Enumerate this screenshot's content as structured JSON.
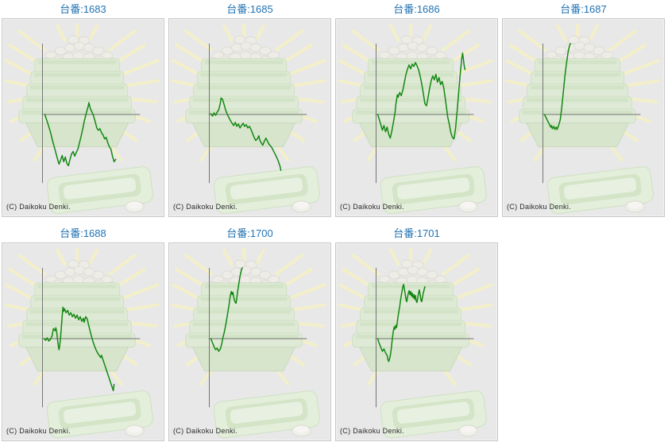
{
  "page": {
    "background": "#ffffff"
  },
  "copyright": "(C) Daikoku Denki.",
  "colors": {
    "title_link_blue": "#2273b3",
    "line_green": "#128712",
    "axis_gray": "#747474",
    "panel_bg": "#e8e8e8",
    "panel_border": "#c6c6c6",
    "copyright_text": "#2b2b2b",
    "watermark_ray_yellow": "#f6f1c2",
    "watermark_tray_green": "#dcebd1",
    "watermark_ball_white": "#efeee7"
  },
  "panels": [
    {
      "machine_no": "1683",
      "title": "台番:1683"
    },
    {
      "machine_no": "1685",
      "title": "台番:1685"
    },
    {
      "machine_no": "1686",
      "title": "台番:1686"
    },
    {
      "machine_no": "1687",
      "title": "台番:1687"
    },
    {
      "machine_no": "1688",
      "title": "台番:1688"
    },
    {
      "machine_no": "1700",
      "title": "台番:1700"
    },
    {
      "machine_no": "1701",
      "title": "台番:1701"
    }
  ],
  "chart_data": [
    {
      "type": "line",
      "title": "台番:1683",
      "machine_no": "1683",
      "xlabel": "",
      "ylabel": "",
      "tick_labels": "none",
      "grid": false,
      "legend": false,
      "units": "pixels from axis origin, y positive above zero line",
      "xlim": [
        0,
        124
      ],
      "ylim": [
        -87,
        90
      ],
      "points": [
        [
          3,
          0
        ],
        [
          5,
          -6
        ],
        [
          7,
          -12
        ],
        [
          10,
          -22
        ],
        [
          13,
          -34
        ],
        [
          16,
          -45
        ],
        [
          19,
          -56
        ],
        [
          21,
          -63
        ],
        [
          23,
          -58
        ],
        [
          25,
          -52
        ],
        [
          27,
          -60
        ],
        [
          29,
          -54
        ],
        [
          31,
          -62
        ],
        [
          33,
          -65
        ],
        [
          35,
          -57
        ],
        [
          37,
          -50
        ],
        [
          39,
          -47
        ],
        [
          41,
          -53
        ],
        [
          43,
          -48
        ],
        [
          45,
          -44
        ],
        [
          47,
          -36
        ],
        [
          49,
          -28
        ],
        [
          51,
          -19
        ],
        [
          53,
          -9
        ],
        [
          55,
          -1
        ],
        [
          56,
          3
        ],
        [
          58,
          10
        ],
        [
          59,
          15
        ],
        [
          61,
          7
        ],
        [
          63,
          3
        ],
        [
          65,
          -2
        ],
        [
          67,
          -9
        ],
        [
          69,
          -17
        ],
        [
          71,
          -20
        ],
        [
          73,
          -18
        ],
        [
          75,
          -23
        ],
        [
          77,
          -26
        ],
        [
          79,
          -31
        ],
        [
          81,
          -29
        ],
        [
          83,
          -36
        ],
        [
          85,
          -41
        ],
        [
          87,
          -44
        ],
        [
          89,
          -53
        ],
        [
          91,
          -60
        ],
        [
          93,
          -57
        ]
      ]
    },
    {
      "type": "line",
      "title": "台番:1685",
      "machine_no": "1685",
      "xlabel": "",
      "ylabel": "",
      "tick_labels": "none",
      "grid": false,
      "legend": false,
      "units": "pixels from axis origin, y positive above zero line",
      "xlim": [
        0,
        124
      ],
      "ylim": [
        -87,
        90
      ],
      "points": [
        [
          2,
          1
        ],
        [
          4,
          -2
        ],
        [
          6,
          2
        ],
        [
          8,
          -1
        ],
        [
          10,
          3
        ],
        [
          12,
          6
        ],
        [
          14,
          14
        ],
        [
          15,
          21
        ],
        [
          17,
          19
        ],
        [
          19,
          12
        ],
        [
          21,
          5
        ],
        [
          23,
          0
        ],
        [
          25,
          -4
        ],
        [
          27,
          -8
        ],
        [
          29,
          -11
        ],
        [
          31,
          -14
        ],
        [
          33,
          -10
        ],
        [
          35,
          -15
        ],
        [
          37,
          -12
        ],
        [
          39,
          -17
        ],
        [
          41,
          -14
        ],
        [
          43,
          -11
        ],
        [
          45,
          -15
        ],
        [
          47,
          -13
        ],
        [
          49,
          -17
        ],
        [
          51,
          -15
        ],
        [
          53,
          -19
        ],
        [
          55,
          -24
        ],
        [
          57,
          -29
        ],
        [
          59,
          -33
        ],
        [
          61,
          -31
        ],
        [
          63,
          -27
        ],
        [
          64,
          -32
        ],
        [
          66,
          -36
        ],
        [
          68,
          -39
        ],
        [
          70,
          -34
        ],
        [
          72,
          -30
        ],
        [
          74,
          -34
        ],
        [
          76,
          -38
        ],
        [
          78,
          -40
        ],
        [
          80,
          -43
        ],
        [
          82,
          -47
        ],
        [
          84,
          -51
        ],
        [
          86,
          -55
        ],
        [
          88,
          -60
        ],
        [
          90,
          -66
        ],
        [
          91,
          -71
        ]
      ]
    },
    {
      "type": "line",
      "title": "台番:1686",
      "machine_no": "1686",
      "xlabel": "",
      "ylabel": "",
      "tick_labels": "none",
      "grid": false,
      "legend": false,
      "units": "pixels from axis origin, y positive above zero line",
      "xlim": [
        0,
        124
      ],
      "ylim": [
        -87,
        90
      ],
      "points": [
        [
          2,
          0
        ],
        [
          4,
          -6
        ],
        [
          6,
          -13
        ],
        [
          8,
          -20
        ],
        [
          10,
          -14
        ],
        [
          12,
          -22
        ],
        [
          14,
          -16
        ],
        [
          16,
          -25
        ],
        [
          18,
          -30
        ],
        [
          20,
          -21
        ],
        [
          22,
          -10
        ],
        [
          24,
          2
        ],
        [
          25,
          12
        ],
        [
          27,
          25
        ],
        [
          28,
          22
        ],
        [
          30,
          28
        ],
        [
          32,
          24
        ],
        [
          34,
          31
        ],
        [
          36,
          41
        ],
        [
          38,
          51
        ],
        [
          40,
          58
        ],
        [
          42,
          63
        ],
        [
          44,
          58
        ],
        [
          46,
          64
        ],
        [
          48,
          61
        ],
        [
          50,
          66
        ],
        [
          52,
          62
        ],
        [
          54,
          57
        ],
        [
          56,
          49
        ],
        [
          58,
          39
        ],
        [
          60,
          27
        ],
        [
          62,
          14
        ],
        [
          64,
          11
        ],
        [
          66,
          21
        ],
        [
          68,
          33
        ],
        [
          70,
          43
        ],
        [
          72,
          49
        ],
        [
          74,
          44
        ],
        [
          76,
          51
        ],
        [
          78,
          41
        ],
        [
          80,
          47
        ],
        [
          82,
          38
        ],
        [
          84,
          42
        ],
        [
          86,
          34
        ],
        [
          88,
          20
        ],
        [
          90,
          5
        ],
        [
          91,
          -3
        ],
        [
          93,
          -12
        ],
        [
          95,
          -23
        ],
        [
          97,
          -29
        ],
        [
          99,
          -31
        ],
        [
          101,
          -18
        ],
        [
          103,
          4
        ],
        [
          105,
          28
        ],
        [
          107,
          52
        ],
        [
          109,
          72
        ],
        [
          110,
          78
        ],
        [
          112,
          62
        ],
        [
          113,
          57
        ]
      ]
    },
    {
      "type": "line",
      "title": "台番:1687",
      "machine_no": "1687",
      "xlabel": "",
      "ylabel": "",
      "tick_labels": "none",
      "grid": false,
      "legend": false,
      "units": "pixels from axis origin, y positive above zero line",
      "xlim": [
        0,
        124
      ],
      "ylim": [
        -87,
        90
      ],
      "points": [
        [
          2,
          0
        ],
        [
          4,
          -4
        ],
        [
          6,
          -8
        ],
        [
          8,
          -12
        ],
        [
          10,
          -16
        ],
        [
          11,
          -14
        ],
        [
          12,
          -18
        ],
        [
          14,
          -15
        ],
        [
          15,
          -19
        ],
        [
          17,
          -16
        ],
        [
          18,
          -19
        ],
        [
          20,
          -14
        ],
        [
          22,
          -7
        ],
        [
          23,
          1
        ],
        [
          24,
          9
        ],
        [
          25,
          19
        ],
        [
          26,
          29
        ],
        [
          27,
          39
        ],
        [
          28,
          49
        ],
        [
          29,
          57
        ],
        [
          30,
          65
        ],
        [
          31,
          72
        ],
        [
          32,
          79
        ],
        [
          33,
          84
        ],
        [
          34,
          88
        ],
        [
          35,
          90
        ]
      ]
    },
    {
      "type": "line",
      "title": "台番:1688",
      "machine_no": "1688",
      "xlabel": "",
      "ylabel": "",
      "tick_labels": "none",
      "grid": false,
      "legend": false,
      "units": "pixels from axis origin, y positive above zero line",
      "xlim": [
        0,
        124
      ],
      "ylim": [
        -87,
        90
      ],
      "points": [
        [
          2,
          0
        ],
        [
          4,
          -2
        ],
        [
          6,
          1
        ],
        [
          8,
          -3
        ],
        [
          10,
          -1
        ],
        [
          12,
          3
        ],
        [
          13,
          8
        ],
        [
          14,
          13
        ],
        [
          16,
          10
        ],
        [
          17,
          14
        ],
        [
          18,
          9
        ],
        [
          19,
          0
        ],
        [
          20,
          -8
        ],
        [
          21,
          -14
        ],
        [
          22,
          -8
        ],
        [
          23,
          2
        ],
        [
          24,
          15
        ],
        [
          25,
          28
        ],
        [
          26,
          40
        ],
        [
          27,
          35
        ],
        [
          28,
          38
        ],
        [
          30,
          33
        ],
        [
          32,
          36
        ],
        [
          34,
          30
        ],
        [
          36,
          33
        ],
        [
          38,
          28
        ],
        [
          40,
          31
        ],
        [
          42,
          26
        ],
        [
          44,
          30
        ],
        [
          46,
          24
        ],
        [
          48,
          28
        ],
        [
          50,
          22
        ],
        [
          52,
          26
        ],
        [
          53,
          21
        ],
        [
          55,
          28
        ],
        [
          57,
          25
        ],
        [
          58,
          20
        ],
        [
          60,
          12
        ],
        [
          62,
          4
        ],
        [
          64,
          -3
        ],
        [
          66,
          -9
        ],
        [
          68,
          -14
        ],
        [
          70,
          -18
        ],
        [
          72,
          -21
        ],
        [
          74,
          -24
        ],
        [
          75,
          -21
        ],
        [
          77,
          -27
        ],
        [
          79,
          -33
        ],
        [
          81,
          -39
        ],
        [
          83,
          -45
        ],
        [
          85,
          -51
        ],
        [
          87,
          -57
        ],
        [
          89,
          -63
        ],
        [
          90,
          -66
        ],
        [
          91,
          -58
        ]
      ]
    },
    {
      "type": "line",
      "title": "台番:1700",
      "machine_no": "1700",
      "xlabel": "",
      "ylabel": "",
      "tick_labels": "none",
      "grid": false,
      "legend": false,
      "units": "pixels from axis origin, y positive above zero line",
      "xlim": [
        0,
        124
      ],
      "ylim": [
        -87,
        90
      ],
      "points": [
        [
          2,
          0
        ],
        [
          4,
          -5
        ],
        [
          6,
          -10
        ],
        [
          8,
          -14
        ],
        [
          10,
          -12
        ],
        [
          12,
          -16
        ],
        [
          14,
          -13
        ],
        [
          16,
          -6
        ],
        [
          17,
          0
        ],
        [
          19,
          8
        ],
        [
          21,
          18
        ],
        [
          23,
          30
        ],
        [
          25,
          42
        ],
        [
          26,
          50
        ],
        [
          27,
          56
        ],
        [
          28,
          60
        ],
        [
          29,
          56
        ],
        [
          30,
          59
        ],
        [
          31,
          53
        ],
        [
          32,
          49
        ],
        [
          33,
          46
        ],
        [
          34,
          45
        ],
        [
          35,
          52
        ],
        [
          36,
          60
        ],
        [
          37,
          66
        ],
        [
          38,
          73
        ],
        [
          39,
          79
        ],
        [
          40,
          84
        ],
        [
          41,
          88
        ],
        [
          42,
          90
        ]
      ]
    },
    {
      "type": "line",
      "title": "台番:1701",
      "machine_no": "1701",
      "xlabel": "",
      "ylabel": "",
      "tick_labels": "none",
      "grid": false,
      "legend": false,
      "units": "pixels from axis origin, y positive above zero line",
      "xlim": [
        0,
        124
      ],
      "ylim": [
        -87,
        90
      ],
      "points": [
        [
          2,
          0
        ],
        [
          4,
          -6
        ],
        [
          6,
          -11
        ],
        [
          8,
          -16
        ],
        [
          10,
          -13
        ],
        [
          12,
          -18
        ],
        [
          14,
          -21
        ],
        [
          15,
          -26
        ],
        [
          16,
          -29
        ],
        [
          17,
          -26
        ],
        [
          18,
          -22
        ],
        [
          19,
          -15
        ],
        [
          20,
          -6
        ],
        [
          21,
          3
        ],
        [
          22,
          10
        ],
        [
          23,
          15
        ],
        [
          24,
          12
        ],
        [
          25,
          17
        ],
        [
          26,
          14
        ],
        [
          27,
          21
        ],
        [
          28,
          29
        ],
        [
          30,
          41
        ],
        [
          32,
          55
        ],
        [
          34,
          66
        ],
        [
          35,
          69
        ],
        [
          36,
          63
        ],
        [
          37,
          57
        ],
        [
          38,
          50
        ],
        [
          39,
          47
        ],
        [
          40,
          53
        ],
        [
          41,
          58
        ],
        [
          42,
          61
        ],
        [
          43,
          56
        ],
        [
          44,
          60
        ],
        [
          45,
          54
        ],
        [
          46,
          58
        ],
        [
          47,
          52
        ],
        [
          48,
          56
        ],
        [
          49,
          50
        ],
        [
          50,
          55
        ],
        [
          51,
          48
        ],
        [
          52,
          46
        ],
        [
          53,
          52
        ],
        [
          54,
          58
        ],
        [
          55,
          62
        ],
        [
          56,
          56
        ],
        [
          57,
          49
        ],
        [
          58,
          47
        ],
        [
          59,
          53
        ],
        [
          60,
          58
        ],
        [
          61,
          62
        ],
        [
          62,
          66
        ]
      ]
    }
  ]
}
